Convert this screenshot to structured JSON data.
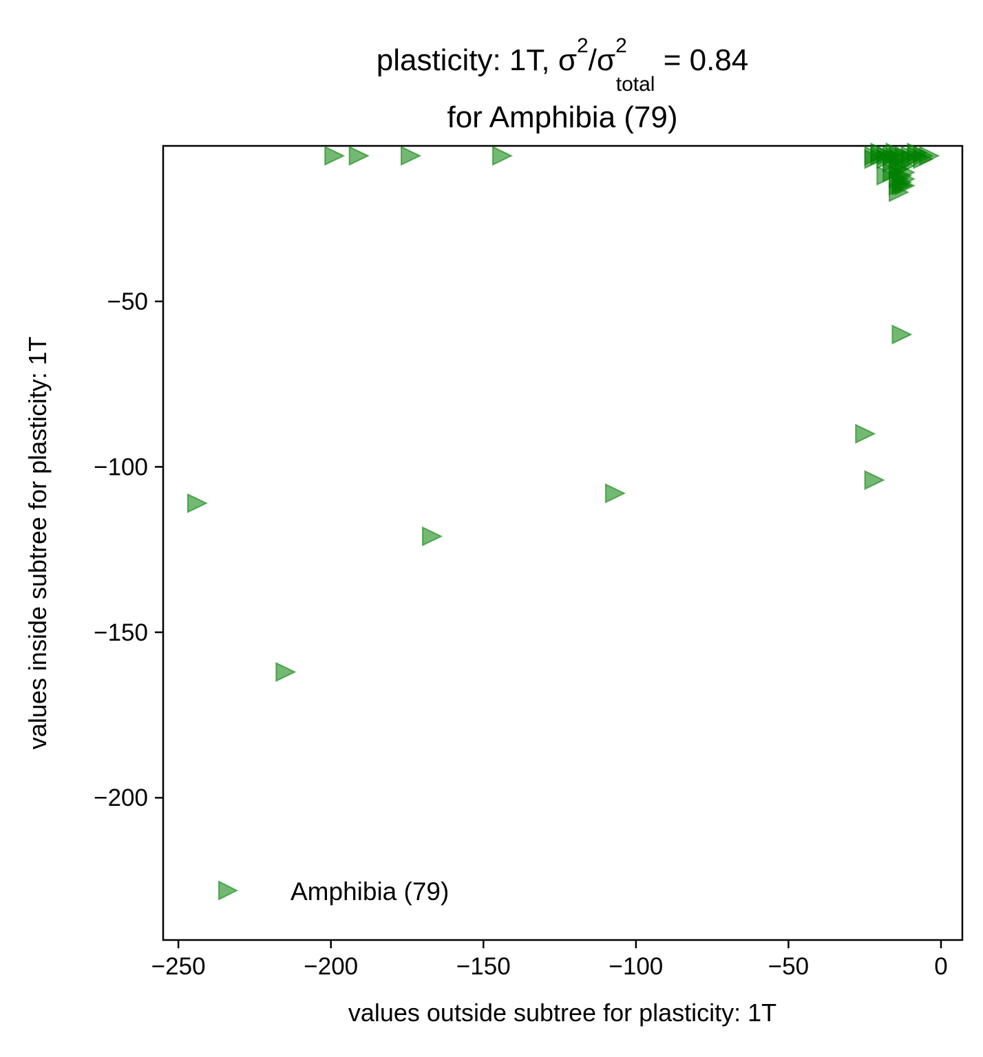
{
  "chart_data": {
    "type": "scatter",
    "title": {
      "prefix": "plasticity: 1T, σ",
      "sup1": "2",
      "middle": "/σ",
      "sup2": "2",
      "sub": "total",
      "suffix": " =  0.84",
      "line2": "for Amphibia (79)"
    },
    "xlabel": "values outside subtree for plasticity: 1T",
    "ylabel": "values inside subtree for plasticity: 1T",
    "xlim": [
      -255,
      7
    ],
    "ylim": [
      -243,
      -3
    ],
    "xticks": [
      -250,
      -200,
      -150,
      -100,
      -50,
      0
    ],
    "xtick_labels": [
      "−250",
      "−200",
      "−150",
      "−100",
      "−50",
      "0"
    ],
    "yticks": [
      -50,
      -100,
      -150,
      -200
    ],
    "ytick_labels": [
      "−50",
      "−100",
      "−150",
      "−200"
    ],
    "grid": false,
    "legend_position": "lower-left",
    "series": [
      {
        "name": "Amphibia (79)",
        "color": "#008000",
        "marker": "triangle-right",
        "alpha": 0.55,
        "x": [
          -199,
          -191,
          -174,
          -144,
          -244,
          -215,
          -167,
          -107,
          -25,
          -22,
          -13,
          -22,
          -20,
          -18,
          -16,
          -14,
          -12,
          -10,
          -8,
          -6,
          -4,
          -22,
          -18,
          -14,
          -10,
          -6,
          -20,
          -15,
          -8,
          -16,
          -14,
          -12,
          -14,
          -12,
          -16,
          -13,
          -12,
          -18,
          -14,
          -13,
          -14,
          -13,
          -12,
          -14
        ],
        "y": [
          -6,
          -6,
          -6,
          -6,
          -111,
          -162,
          -121,
          -108,
          -90,
          -104,
          -60,
          -6,
          -6,
          -6,
          -6,
          -6,
          -6,
          -6,
          -6,
          -6,
          -6,
          -7,
          -7,
          -7,
          -7,
          -7,
          -5,
          -5,
          -5,
          -8,
          -9,
          -9,
          -10,
          -11,
          -11,
          -12,
          -13,
          -12,
          -13,
          -14,
          -15,
          -15,
          -15,
          -17
        ]
      }
    ]
  }
}
